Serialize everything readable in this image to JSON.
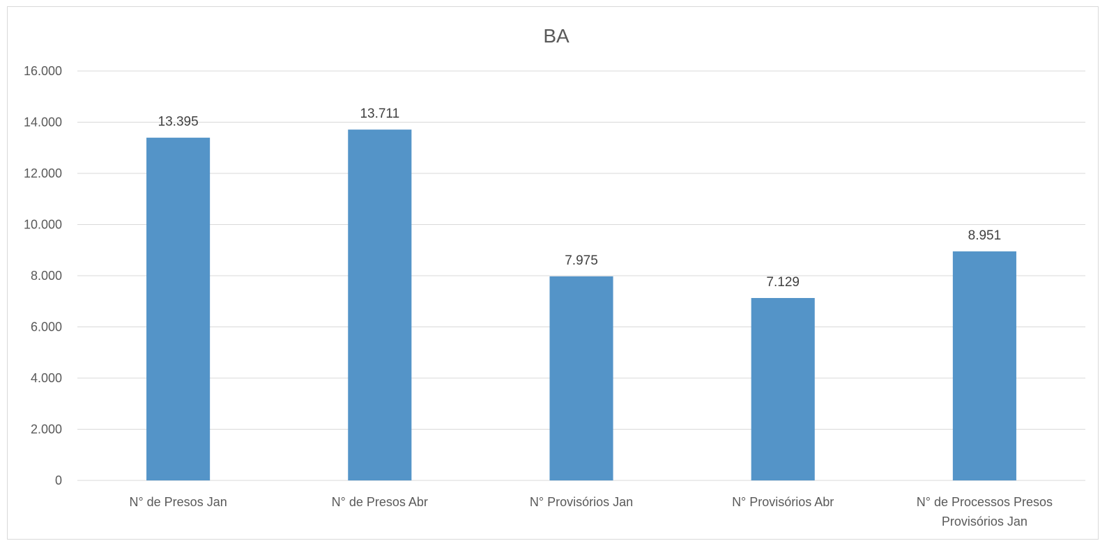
{
  "chart_data": {
    "type": "bar",
    "title": "BA",
    "categories": [
      [
        "N° de Presos Jan"
      ],
      [
        "N° de Presos Abr"
      ],
      [
        "N° Provisórios Jan"
      ],
      [
        "N° Provisórios Abr"
      ],
      [
        "N° de Processos Presos",
        "Provisórios Jan"
      ]
    ],
    "values": [
      13395,
      13711,
      7975,
      7129,
      8951
    ],
    "value_labels": [
      "13.395",
      "13.711",
      "7.975",
      "7.129",
      "8.951"
    ],
    "yticks": [
      "0",
      "2.000",
      "4.000",
      "6.000",
      "8.000",
      "10.000",
      "12.000",
      "14.000",
      "16.000"
    ],
    "ylim": [
      0,
      16000
    ],
    "grid": true,
    "bar_color": "#5494C8",
    "grid_color": "#d9d9d9"
  }
}
